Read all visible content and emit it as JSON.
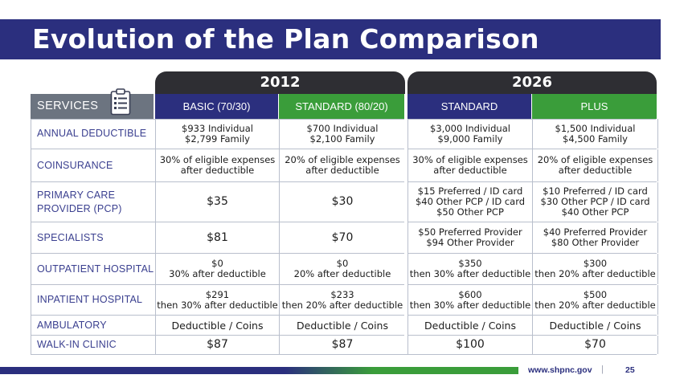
{
  "title": "Evolution of the Plan Comparison",
  "years": {
    "y2012": "2012",
    "y2026": "2026"
  },
  "headers": {
    "services": "SERVICES",
    "basic": "BASIC (70/30)",
    "standard2012": "STANDARD (80/20)",
    "standard2026": "STANDARD",
    "plus": "PLUS"
  },
  "icons": {
    "services": "clipboard-icon"
  },
  "colors": {
    "navy": "#2b2f7e",
    "green": "#3a9d3a",
    "dark_tab": "#2e2e33",
    "gray_header": "#6c7480"
  },
  "rows": [
    {
      "label": "ANNUAL DEDUCTIBLE",
      "basic": [
        "$933 Individual",
        "$2,799 Family"
      ],
      "std12": [
        "$700 Individual",
        "$2,100 Family"
      ],
      "std26": [
        "$3,000 Individual",
        "$9,000 Family"
      ],
      "plus": [
        "$1,500 Individual",
        "$4,500 Family"
      ]
    },
    {
      "label": "COINSURANCE",
      "basic": [
        "30% of eligible expenses",
        "after deductible"
      ],
      "std12": [
        "20% of eligible expenses",
        "after deductible"
      ],
      "std26": [
        "30% of eligible expenses",
        "after deductible"
      ],
      "plus": [
        "20% of eligible expenses",
        "after deductible"
      ]
    },
    {
      "label1": "PRIMARY CARE",
      "label2": "PROVIDER (PCP)",
      "basic": "$35",
      "std12": "$30",
      "std26": [
        "$15 Preferred / ID card",
        "$40 Other PCP / ID card",
        "$50 Other PCP"
      ],
      "plus": [
        "$10 Preferred / ID card",
        "$30 Other PCP / ID card",
        "$40 Other PCP"
      ]
    },
    {
      "label": "SPECIALISTS",
      "basic": "$81",
      "std12": "$70",
      "std26": [
        "$50 Preferred Provider",
        "$94 Other Provider"
      ],
      "plus": [
        "$40 Preferred Provider",
        "$80 Other Provider"
      ]
    },
    {
      "label": "OUTPATIENT HOSPITAL",
      "basic": [
        "$0",
        "30% after deductible"
      ],
      "std12": [
        "$0",
        "20% after deductible"
      ],
      "std26": [
        "$350",
        "then 30% after deductible"
      ],
      "plus": [
        "$300",
        "then 20% after deductible"
      ]
    },
    {
      "label": "INPATIENT HOSPITAL",
      "basic": [
        "$291",
        "then 30% after deductible"
      ],
      "std12": [
        "$233",
        "then 20% after deductible"
      ],
      "std26": [
        "$600",
        "then 30% after deductible"
      ],
      "plus": [
        "$500",
        "then 20% after deductible"
      ]
    },
    {
      "label": "AMBULATORY",
      "basic": "Deductible / Coins",
      "std12": "Deductible / Coins",
      "std26": "Deductible / Coins",
      "plus": "Deductible / Coins"
    },
    {
      "label": "WALK-IN CLINIC",
      "basic": "$87",
      "std12": "$87",
      "std26": "$100",
      "plus": "$70"
    }
  ],
  "footer": {
    "url": "www.shpnc.gov",
    "separator": "|",
    "page": "25"
  }
}
